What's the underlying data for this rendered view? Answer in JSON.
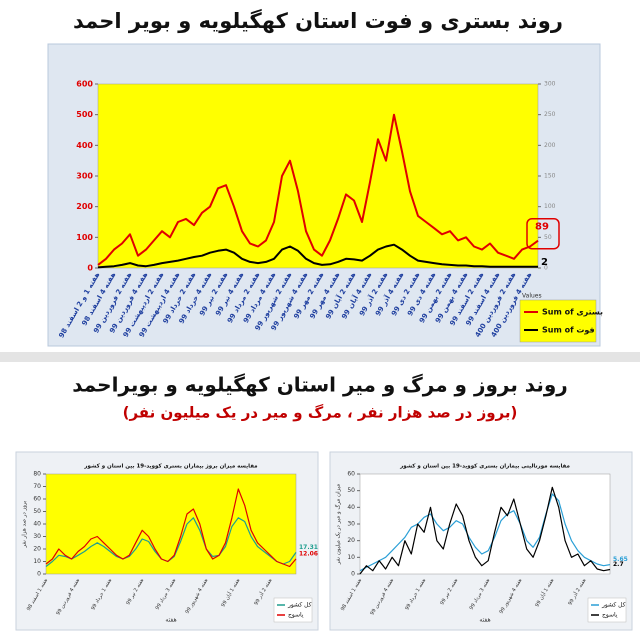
{
  "section_title": "روند بروز و مرگ و میر استان کهگیلویه و بویراحمد",
  "section_subtitle": "(بروز در صد هزار نفر ، مرگ و میر در یک میلیون نفر)",
  "chart_data": [
    {
      "type": "line",
      "title": "روند بستری و فوت استان کهگیلویه و بویر احمد",
      "categories": [
        "هفته 1 و 2 اسفند 98",
        null,
        "هفته 4 اسفند 98",
        null,
        "هفته 2 فروردین 99",
        null,
        "هفته 4 فروردین 99",
        null,
        "هفته 2 اردیبهشت 99",
        null,
        "هفته 4 اردیبهشت 99",
        null,
        "هفته 2 خرداد 99",
        null,
        "هفته 4 خرداد 99",
        null,
        "هفته 2 تیر 99",
        null,
        "هفته 4 تیر 99",
        null,
        "هفته 2 مرداد 99",
        null,
        "هفته 4 مرداد 99",
        null,
        "هفته 2 شهریور 99",
        null,
        "هفته 4 شهریور 99",
        null,
        "هفته 2 مهر 99",
        null,
        "هفته 4 مهر 99",
        null,
        "هفته 2 آبان 99",
        null,
        "هفته 4 آبان 99",
        null,
        "هفته 2 آذر 99",
        null,
        "هفته 4 آذر 99",
        null,
        "هفته 2 دی 99",
        null,
        "هفته 4 دی 99",
        null,
        "هفته 2 بهمن 99",
        null,
        "هفته 4 بهمن 99",
        null,
        "هفته 2 اسفند 99",
        null,
        "هفته 4 اسفند 99",
        null,
        "هفته 2 فروردین 400",
        null,
        "هفته 4 فروردین 400",
        null
      ],
      "series": [
        {
          "name": "Sum of بستری",
          "color": "#e00000",
          "values": [
            10,
            30,
            60,
            80,
            110,
            40,
            60,
            90,
            120,
            100,
            150,
            160,
            140,
            180,
            200,
            260,
            270,
            200,
            120,
            80,
            70,
            90,
            150,
            300,
            350,
            250,
            120,
            60,
            40,
            90,
            160,
            240,
            220,
            150,
            280,
            420,
            350,
            500,
            380,
            250,
            170,
            150,
            130,
            110,
            120,
            90,
            100,
            70,
            60,
            80,
            50,
            40,
            30,
            60,
            70,
            89
          ]
        },
        {
          "name": "Sum of فوت",
          "color": "#000000",
          "axis": "y2",
          "values": [
            1,
            2,
            3,
            5,
            8,
            4,
            3,
            5,
            8,
            10,
            12,
            15,
            18,
            20,
            25,
            28,
            30,
            25,
            15,
            10,
            8,
            10,
            15,
            30,
            35,
            28,
            15,
            8,
            5,
            6,
            10,
            15,
            14,
            12,
            20,
            30,
            35,
            38,
            30,
            20,
            12,
            10,
            8,
            6,
            5,
            4,
            4,
            3,
            3,
            2,
            2,
            2,
            2,
            2,
            2,
            2
          ]
        }
      ],
      "ylim": [
        0,
        600
      ],
      "yticks": [
        0,
        100,
        200,
        300,
        400,
        500,
        600
      ],
      "y2lim": [
        0,
        300
      ],
      "y2ticks": [
        0,
        50,
        100,
        150,
        200,
        250,
        300
      ],
      "plot_background": "#ffff00",
      "legend_title": "Values",
      "legend": "lower right"
    },
    {
      "type": "line",
      "title": "مقایسه میزان بروز بیماران بستری کووید-19 بین استان و کشور",
      "y_label": "بروز در صد هزار نفر",
      "x_label": "هفته",
      "categories": [
        "هفته 1 اسفند 98",
        null,
        null,
        null,
        null,
        "هفته 4 فروردین 99",
        null,
        null,
        null,
        null,
        "هفته 1 خرداد 99",
        null,
        null,
        null,
        null,
        "هفته 2 تیر 99",
        null,
        null,
        null,
        null,
        "هفته 3 مرداد 99",
        null,
        null,
        null,
        null,
        "هفته 4 شهریور 99",
        null,
        null,
        null,
        null,
        "هفته 1 آبان 99",
        null,
        null,
        null,
        null,
        "هفته 2 آذر 99",
        null,
        null,
        null,
        null
      ],
      "series": [
        {
          "name": "کل کشور",
          "color": "#1f9e8f",
          "values": [
            6,
            10,
            15,
            14,
            12,
            15,
            18,
            22,
            25,
            22,
            18,
            14,
            12,
            14,
            20,
            28,
            26,
            18,
            12,
            10,
            14,
            26,
            40,
            45,
            35,
            20,
            14,
            15,
            22,
            38,
            45,
            42,
            30,
            22,
            18,
            14,
            10,
            8,
            10,
            17.31
          ]
        },
        {
          "name": "یاسوج",
          "color": "#e00000",
          "values": [
            8,
            12,
            20,
            15,
            12,
            18,
            22,
            28,
            30,
            25,
            20,
            15,
            12,
            15,
            25,
            35,
            30,
            20,
            12,
            10,
            15,
            30,
            48,
            52,
            40,
            20,
            12,
            15,
            25,
            45,
            68,
            55,
            35,
            25,
            20,
            15,
            10,
            8,
            6,
            12.06
          ]
        }
      ],
      "ylim": [
        0,
        80
      ],
      "yticks": [
        0,
        10,
        20,
        30,
        40,
        50,
        60,
        70,
        80
      ],
      "plot_background": "#ffff00",
      "legend": "lower right"
    },
    {
      "type": "line",
      "title": "مقایسه مورتالیتی بیماران بستری کووید-19 بین استان و کشور",
      "y_label": "میزان مرگ و میر در یک میلیون نفر",
      "x_label": "هفته",
      "categories": [
        "هفته 1 اسفند 98",
        null,
        null,
        null,
        null,
        "هفته 4 فروردین 99",
        null,
        null,
        null,
        null,
        "هفته 1 خرداد 99",
        null,
        null,
        null,
        null,
        "هفته 2 تیر 99",
        null,
        null,
        null,
        null,
        "هفته 3 مرداد 99",
        null,
        null,
        null,
        null,
        "هفته 4 شهریور 99",
        null,
        null,
        null,
        null,
        "هفته 1 آبان 99",
        null,
        null,
        null,
        null,
        "هفته 2 آذر 99",
        null,
        null,
        null,
        null
      ],
      "series": [
        {
          "name": "کل کشور",
          "color": "#2a9fd6",
          "values": [
            2,
            4,
            6,
            8,
            10,
            14,
            18,
            22,
            28,
            30,
            34,
            36,
            30,
            26,
            28,
            32,
            30,
            22,
            16,
            12,
            14,
            22,
            32,
            36,
            38,
            30,
            20,
            16,
            22,
            36,
            48,
            44,
            30,
            20,
            14,
            10,
            8,
            6,
            5,
            5.65
          ]
        },
        {
          "name": "یاسوج",
          "color": "#000000",
          "values": [
            0,
            5,
            2,
            8,
            3,
            10,
            5,
            20,
            12,
            30,
            25,
            40,
            20,
            15,
            30,
            42,
            35,
            20,
            10,
            5,
            8,
            25,
            40,
            35,
            45,
            30,
            15,
            10,
            20,
            35,
            52,
            40,
            20,
            10,
            12,
            5,
            8,
            3,
            2,
            2.7
          ]
        }
      ],
      "ylim": [
        0,
        60
      ],
      "yticks": [
        0,
        10,
        20,
        30,
        40,
        50,
        60
      ],
      "plot_background": "#ffffff",
      "legend": "lower right"
    }
  ]
}
